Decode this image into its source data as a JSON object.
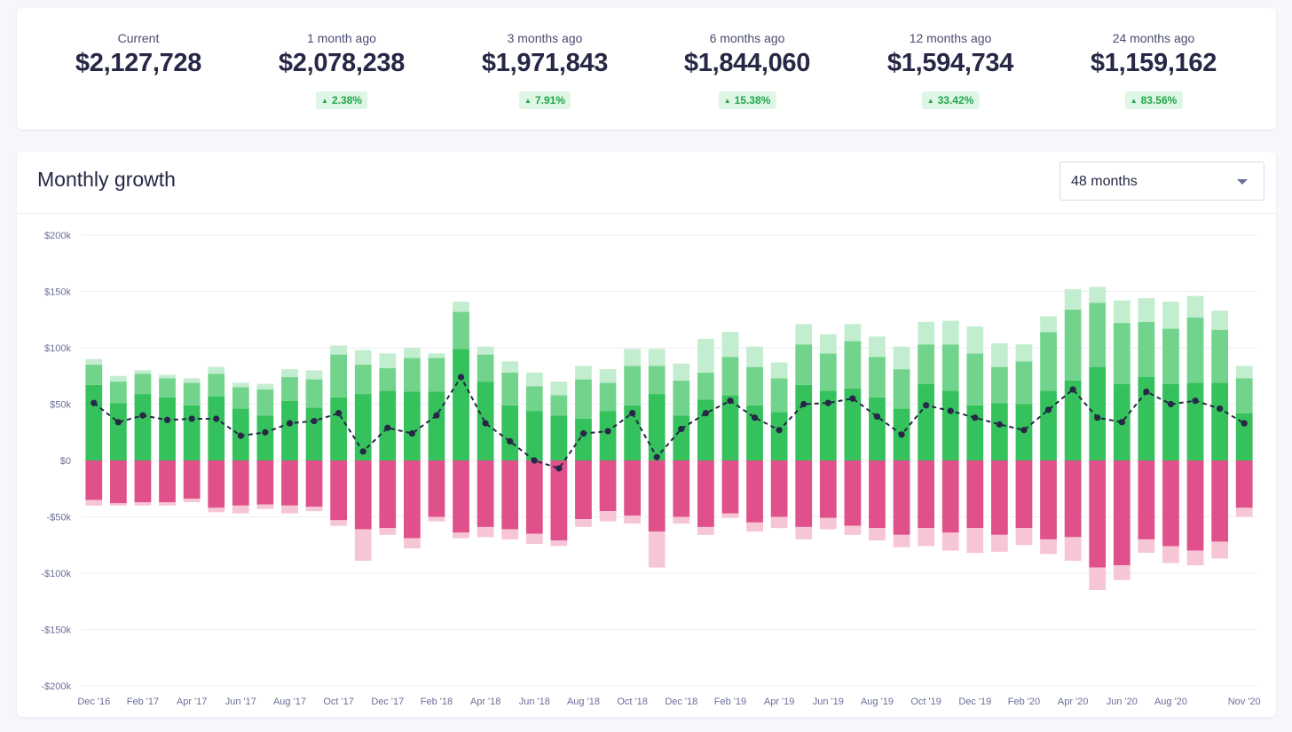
{
  "summary": {
    "metrics": [
      {
        "label": "Current",
        "value": "$2,127,728",
        "change": ""
      },
      {
        "label": "1 month ago",
        "value": "$2,078,238",
        "change": "2.38%"
      },
      {
        "label": "3 months ago",
        "value": "$1,971,843",
        "change": "7.91%"
      },
      {
        "label": "6 months ago",
        "value": "$1,844,060",
        "change": "15.38%"
      },
      {
        "label": "12 months ago",
        "value": "$1,594,734",
        "change": "33.42%"
      },
      {
        "label": "24 months ago",
        "value": "$1,159,162",
        "change": "83.56%"
      }
    ],
    "change_color": "#1ea64a"
  },
  "panel": {
    "title": "Monthly growth",
    "range_selected": "48 months"
  },
  "chart_data": {
    "type": "bar",
    "ylim": [
      -200000,
      200000
    ],
    "yticks": [
      200000,
      150000,
      100000,
      50000,
      0,
      -50000,
      -100000,
      -150000,
      -200000
    ],
    "ytick_labels": [
      "$200k",
      "$150k",
      "$100k",
      "$50k",
      "$0",
      "-$50k",
      "-$100k",
      "-$150k",
      "-$200k"
    ],
    "grid": true,
    "x_tick_labels": [
      "Dec '16",
      "Feb '17",
      "Apr '17",
      "Jun '17",
      "Aug '17",
      "Oct '17",
      "Dec '17",
      "Feb '18",
      "Apr '18",
      "Jun '18",
      "Aug '18",
      "Oct '18",
      "Dec '18",
      "Feb '19",
      "Apr '19",
      "Jun '19",
      "Aug '19",
      "Oct '19",
      "Dec '19",
      "Feb '20",
      "Apr '20",
      "Jun '20",
      "Aug '20",
      "Nov '20"
    ],
    "x_tick_indices": [
      0,
      2,
      4,
      6,
      8,
      10,
      12,
      14,
      16,
      18,
      20,
      22,
      24,
      26,
      28,
      30,
      32,
      34,
      36,
      38,
      40,
      42,
      44,
      47
    ],
    "colors": [
      "#35c15c",
      "#72d48c",
      "#c3edcf",
      "#e0508a",
      "#f7c6d6",
      "#262845"
    ],
    "series": [
      {
        "values": [
          67000,
          51000,
          59000,
          56000,
          49000,
          57000,
          46000,
          40000,
          53000,
          47000,
          56000,
          59000,
          62000,
          61000,
          61000,
          99000,
          70000,
          49000,
          44000,
          40000,
          37000,
          44000,
          49000,
          59000,
          40000,
          54000,
          58000,
          49000,
          43000,
          67000,
          62000,
          64000,
          56000,
          46000,
          68000,
          62000,
          49000,
          51000,
          50000,
          62000,
          71000,
          83000,
          68000,
          74000,
          68000,
          69000,
          69000,
          42000
        ]
      },
      {
        "values": [
          18000,
          19000,
          18000,
          17000,
          20000,
          20000,
          19000,
          23000,
          21000,
          25000,
          38000,
          26000,
          20000,
          30000,
          30000,
          33000,
          24000,
          29000,
          22000,
          18000,
          35000,
          25000,
          35000,
          25000,
          31000,
          24000,
          34000,
          34000,
          30000,
          36000,
          33000,
          42000,
          36000,
          35000,
          35000,
          41000,
          46000,
          32000,
          38000,
          52000,
          63000,
          57000,
          54000,
          49000,
          49000,
          58000,
          47000,
          31000
        ]
      },
      {
        "values": [
          5000,
          5000,
          3000,
          3000,
          4000,
          6000,
          4000,
          5000,
          7000,
          8000,
          8000,
          13000,
          13000,
          9000,
          4000,
          9000,
          7000,
          10000,
          12000,
          12000,
          12000,
          12000,
          15000,
          15000,
          15000,
          30000,
          22000,
          18000,
          14000,
          18000,
          17000,
          15000,
          18000,
          20000,
          20000,
          21000,
          24000,
          21000,
          15000,
          14000,
          18000,
          14000,
          20000,
          21000,
          24000,
          19000,
          17000,
          11000
        ]
      },
      {
        "values": [
          -35000,
          -38000,
          -37000,
          -37000,
          -34000,
          -42000,
          -40000,
          -39000,
          -40000,
          -41000,
          -53000,
          -61000,
          -60000,
          -69000,
          -50000,
          -64000,
          -59000,
          -61000,
          -65000,
          -71000,
          -52000,
          -45000,
          -49000,
          -63000,
          -50000,
          -59000,
          -47000,
          -55000,
          -50000,
          -59000,
          -51000,
          -58000,
          -60000,
          -66000,
          -60000,
          -64000,
          -60000,
          -66000,
          -60000,
          -70000,
          -68000,
          -95000,
          -93000,
          -70000,
          -76000,
          -80000,
          -72000,
          -42000
        ]
      },
      {
        "values": [
          -5000,
          -2000,
          -3000,
          -3000,
          -3000,
          -4000,
          -7000,
          -4000,
          -7000,
          -4000,
          -5000,
          -28000,
          -6000,
          -9000,
          -4000,
          -5000,
          -9000,
          -9000,
          -9000,
          -5000,
          -7000,
          -9000,
          -7000,
          -32000,
          -6000,
          -7000,
          -4000,
          -8000,
          -10000,
          -11000,
          -10000,
          -8000,
          -11000,
          -11000,
          -16000,
          -16000,
          -22000,
          -15000,
          -15000,
          -13000,
          -21000,
          -20000,
          -13000,
          -12000,
          -15000,
          -13000,
          -15000,
          -8000
        ]
      },
      {
        "values": [
          51000,
          34000,
          40000,
          36000,
          37000,
          37000,
          22000,
          25000,
          33000,
          35000,
          42000,
          8000,
          29000,
          24000,
          40000,
          74000,
          33000,
          17000,
          0,
          -7000,
          24000,
          26000,
          42000,
          3000,
          28000,
          42000,
          53000,
          38000,
          27000,
          50000,
          51000,
          55000,
          39000,
          23000,
          49000,
          44000,
          38000,
          32000,
          27000,
          45000,
          63000,
          38000,
          34000,
          61000,
          50000,
          53000,
          46000,
          33000
        ]
      }
    ]
  }
}
